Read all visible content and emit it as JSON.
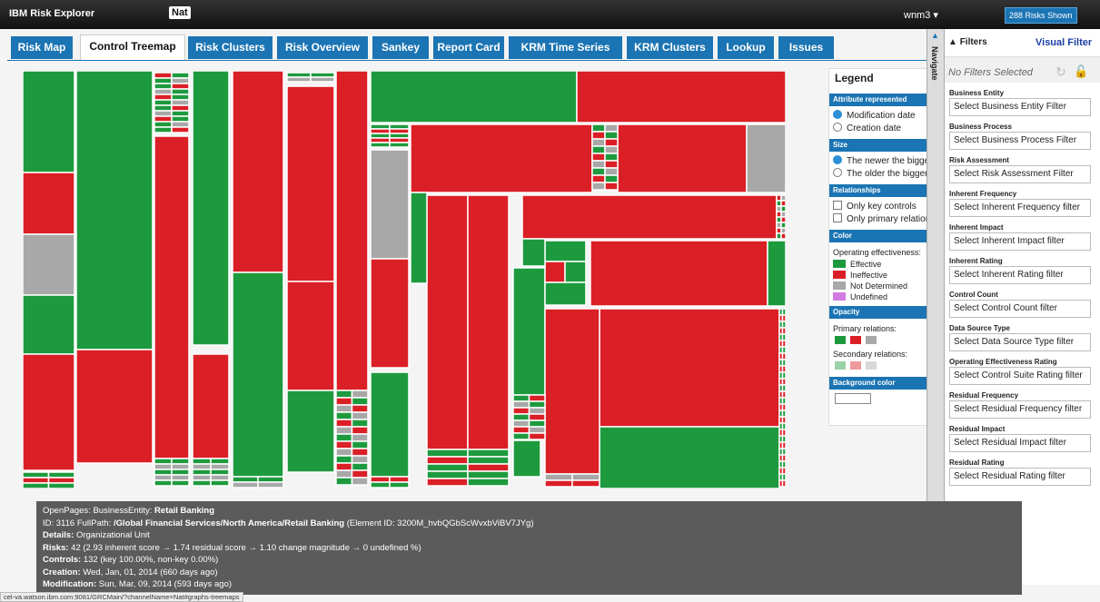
{
  "header": {
    "app_title": "IBM Risk Explorer",
    "user_tag": "Nat",
    "user_menu": "wnm3",
    "risks_shown": "288 Risks Shown"
  },
  "tabs": [
    "Risk Map",
    "Control Treemap",
    "Risk Clusters",
    "Risk Overview",
    "Sankey",
    "Report Card",
    "KRM Time Series",
    "KRM Clusters",
    "Lookup",
    "Issues"
  ],
  "legend": {
    "title": "Legend",
    "attribute": {
      "title": "Attribute represented",
      "options": [
        "Modification date",
        "Creation date"
      ]
    },
    "size": {
      "title": "Size",
      "options": [
        "The newer the bigger",
        "The older the bigger"
      ]
    },
    "relationships": {
      "title": "Relationships",
      "options": [
        "Only key controls",
        "Only primary relation"
      ]
    },
    "color": {
      "title": "Color",
      "subtitle": "Operating effectiveness:",
      "items": [
        {
          "label": "Effective",
          "color": "#1e9a3e"
        },
        {
          "label": "Ineffective",
          "color": "#db1f26"
        },
        {
          "label": "Not Determined",
          "color": "#a8a8a8"
        },
        {
          "label": "Undefined",
          "color": "#d27be0"
        }
      ]
    },
    "opacity": {
      "title": "Opacity",
      "primary": "Primary relations:",
      "secondary": "Secondary relations:"
    },
    "background": {
      "title": "Background color"
    }
  },
  "navigate": "Navigate",
  "filters": {
    "title": "Filters",
    "visual_filter": "Visual Filter",
    "status": "No Filters Selected",
    "items": [
      {
        "label": "Business Entity",
        "placeholder": "Select Business Entity Filter"
      },
      {
        "label": "Business Process",
        "placeholder": "Select Business Process Filter"
      },
      {
        "label": "Risk Assessment",
        "placeholder": "Select Risk Assessment Filter"
      },
      {
        "label": "Inherent Frequency",
        "placeholder": "Select Inherent Frequency filter"
      },
      {
        "label": "Inherent Impact",
        "placeholder": "Select Inherent Impact filter"
      },
      {
        "label": "Inherent Rating",
        "placeholder": "Select Inherent Rating filter"
      },
      {
        "label": "Control Count",
        "placeholder": "Select Control Count filter"
      },
      {
        "label": "Data Source Type",
        "placeholder": "Select Data Source Type filter"
      },
      {
        "label": "Operating Effectiveness Rating",
        "placeholder": "Select Control Suite Rating filter"
      },
      {
        "label": "Residual Frequency",
        "placeholder": "Select Residual Frequency filter"
      },
      {
        "label": "Residual Impact",
        "placeholder": "Select Residual Impact filter"
      },
      {
        "label": "Residual Rating",
        "placeholder": "Select Residual Rating filter"
      }
    ]
  },
  "details": [
    [
      {
        "t": "OpenPages: BusinessEntity: ",
        "b": false
      },
      {
        "t": "Retail Banking",
        "b": true
      }
    ],
    [
      {
        "t": "ID: 3116 FullPath: ",
        "b": false
      },
      {
        "t": "/Global Financial Services/North America/Retail Banking",
        "b": true
      },
      {
        "t": " (Element ID: 3200M_hvbQGbScWvxbViBV7JYg)",
        "b": false
      }
    ],
    [
      {
        "t": "Details:",
        "b": true
      },
      {
        "t": " Organizational Unit",
        "b": false
      }
    ],
    [
      {
        "t": "Risks:",
        "b": true
      },
      {
        "t": " 42 (2.93 inherent score → 1.74 residual score → 1.10 change magnitude → 0 undefined %)",
        "b": false
      }
    ],
    [
      {
        "t": "Controls:",
        "b": true
      },
      {
        "t": " 132 (key 100.00%, non-key 0.00%)",
        "b": false
      }
    ],
    [
      {
        "t": "Creation:",
        "b": true
      },
      {
        "t": " Wed, Jan, 01, 2014 (660 days ago)",
        "b": false
      }
    ],
    [
      {
        "t": "Modification:",
        "b": true
      },
      {
        "t": " Sun, Mar, 09, 2014 (593 days ago)",
        "b": false
      }
    ]
  ],
  "status_url": "cel-va.watson.ibm.com:9081/GRCMain/?channelName=Nat#graphs-treemaps"
}
